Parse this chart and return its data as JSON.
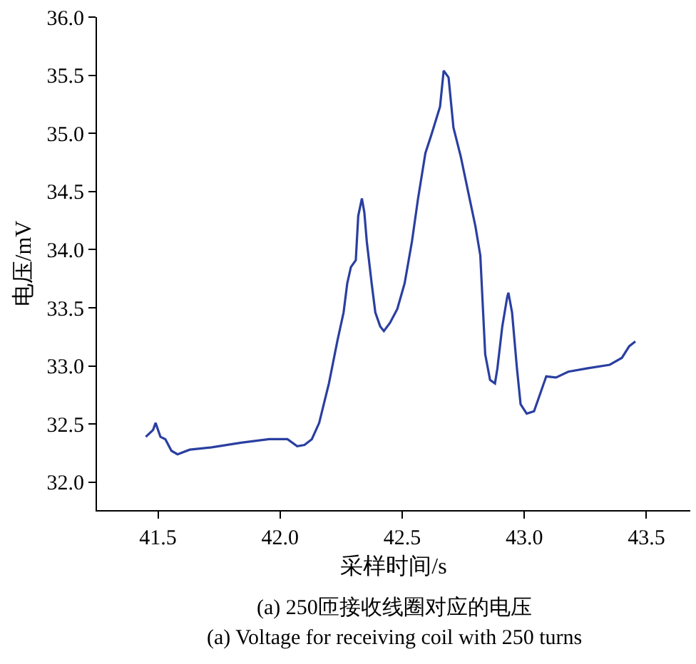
{
  "chart_data": {
    "type": "line",
    "xlabel": "采样时间/s",
    "ylabel": "电压/mV",
    "annotations": [
      "(a) 250匝接收线圈对应的电压",
      "(a) Voltage for receiving coil with 250 turns"
    ],
    "xlim": [
      41.25,
      43.68
    ],
    "ylim": [
      31.76,
      36.0
    ],
    "xticks": [
      {
        "value": 41.5,
        "label": "41.5"
      },
      {
        "value": 42.0,
        "label": "42.0"
      },
      {
        "value": 42.5,
        "label": "42.5"
      },
      {
        "value": 43.0,
        "label": "43.0"
      },
      {
        "value": 43.5,
        "label": "43.5"
      }
    ],
    "yticks": [
      {
        "value": 32.0,
        "label": "32.0"
      },
      {
        "value": 32.5,
        "label": "32.5"
      },
      {
        "value": 33.0,
        "label": "33.0"
      },
      {
        "value": 33.5,
        "label": "33.5"
      },
      {
        "value": 34.0,
        "label": "34.0"
      },
      {
        "value": 34.5,
        "label": "34.5"
      },
      {
        "value": 35.0,
        "label": "35.0"
      },
      {
        "value": 35.5,
        "label": "35.5"
      },
      {
        "value": 36.0,
        "label": "36.0"
      }
    ],
    "marker": "none",
    "line_style": "solid",
    "series": [
      {
        "color": "#2a3fa0",
        "x": [
          41.45,
          41.48,
          41.49,
          41.51,
          41.53,
          41.555,
          41.58,
          41.63,
          41.72,
          41.84,
          41.955,
          42.03,
          42.07,
          42.1,
          42.13,
          42.16,
          42.2,
          42.235,
          42.26,
          42.275,
          42.29,
          42.31,
          42.32,
          42.335,
          42.345,
          42.355,
          42.375,
          42.39,
          42.41,
          42.425,
          42.45,
          42.48,
          42.51,
          42.54,
          42.565,
          42.595,
          42.62,
          42.655,
          42.67,
          42.69,
          42.71,
          42.74,
          42.77,
          42.8,
          42.82,
          42.84,
          42.86,
          42.88,
          42.89,
          42.91,
          42.93,
          42.935,
          42.95,
          42.97,
          42.985,
          43.01,
          43.04,
          43.06,
          43.09,
          43.13,
          43.18,
          43.26,
          43.35,
          43.4,
          43.43,
          43.455
        ],
        "values": [
          32.39,
          32.45,
          32.51,
          32.39,
          32.37,
          32.27,
          32.24,
          32.28,
          32.3,
          32.34,
          32.37,
          32.37,
          32.31,
          32.32,
          32.37,
          32.51,
          32.85,
          33.22,
          33.46,
          33.71,
          33.85,
          33.91,
          34.29,
          34.44,
          34.32,
          34.07,
          33.71,
          33.46,
          33.34,
          33.3,
          33.37,
          33.49,
          33.71,
          34.07,
          34.44,
          34.83,
          34.99,
          35.23,
          35.54,
          35.48,
          35.05,
          34.8,
          34.5,
          34.2,
          33.95,
          33.1,
          32.88,
          32.85,
          32.98,
          33.34,
          33.59,
          33.63,
          33.46,
          32.98,
          32.67,
          32.59,
          32.61,
          32.73,
          32.91,
          32.9,
          32.95,
          32.98,
          33.01,
          33.07,
          33.17,
          33.21
        ]
      }
    ]
  }
}
